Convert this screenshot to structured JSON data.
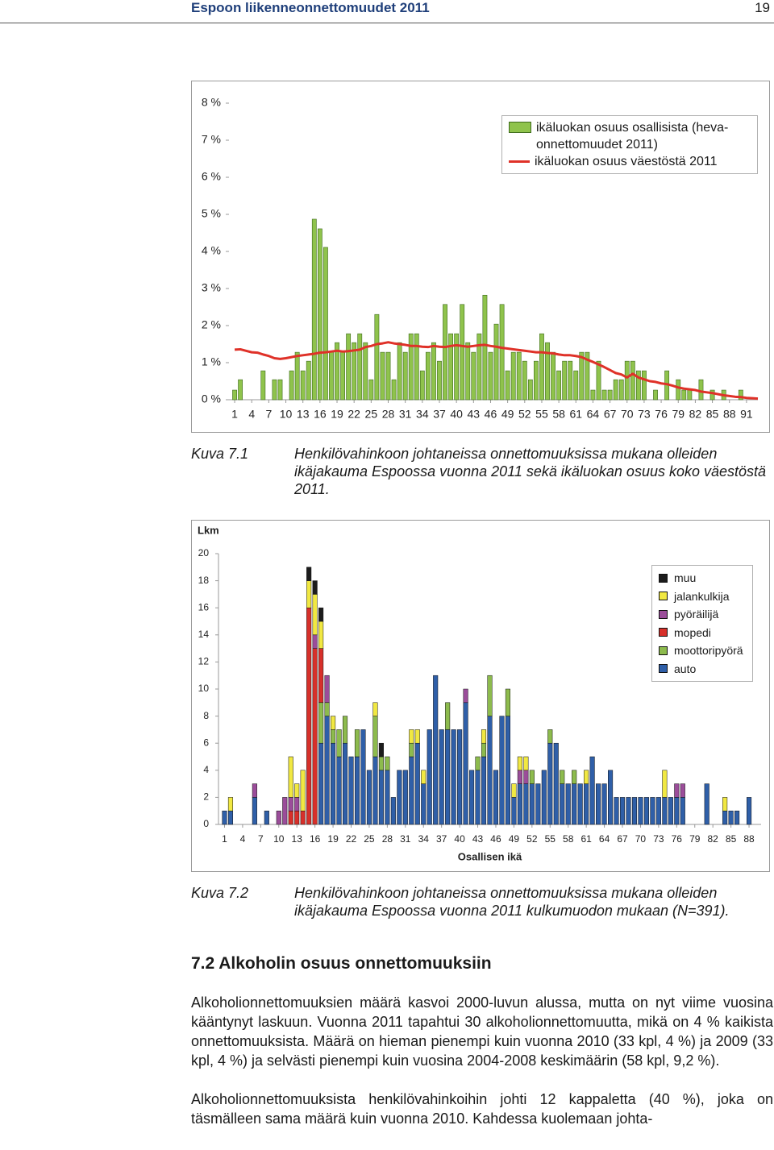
{
  "header": {
    "title": "Espoon liikenneonnettomuudet 2011",
    "page": 19
  },
  "chart_data": [
    {
      "type": "combo",
      "legend": "upper right",
      "grid": false,
      "x": [
        1,
        2,
        3,
        4,
        5,
        6,
        7,
        8,
        9,
        10,
        11,
        12,
        13,
        14,
        15,
        16,
        17,
        18,
        19,
        20,
        21,
        22,
        23,
        24,
        25,
        26,
        27,
        28,
        29,
        30,
        31,
        32,
        33,
        34,
        35,
        36,
        37,
        38,
        39,
        40,
        41,
        42,
        43,
        44,
        45,
        46,
        47,
        48,
        49,
        50,
        51,
        52,
        53,
        54,
        55,
        56,
        57,
        58,
        59,
        60,
        61,
        62,
        63,
        64,
        65,
        66,
        67,
        68,
        69,
        70,
        71,
        72,
        73,
        74,
        75,
        76,
        77,
        78,
        79,
        80,
        81,
        82,
        83,
        84,
        85,
        86,
        87,
        88,
        89,
        90,
        91,
        92,
        93
      ],
      "xlim": [
        0,
        93
      ],
      "xticks": [
        1,
        4,
        7,
        10,
        13,
        16,
        19,
        22,
        25,
        28,
        31,
        34,
        37,
        40,
        43,
        46,
        49,
        52,
        55,
        58,
        61,
        64,
        67,
        70,
        73,
        76,
        79,
        82,
        85,
        88,
        91
      ],
      "ylim": [
        0,
        8
      ],
      "yticks": [
        {
          "value": 0,
          "label": "0 %"
        },
        {
          "value": 1,
          "label": "1 %"
        },
        {
          "value": 2,
          "label": "2 %"
        },
        {
          "value": 3,
          "label": "3 %"
        },
        {
          "value": 4,
          "label": "4 %"
        },
        {
          "value": 5,
          "label": "5 %"
        },
        {
          "value": 6,
          "label": "6 %"
        },
        {
          "value": 7,
          "label": "7 %"
        },
        {
          "value": 8,
          "label": "8 %"
        }
      ],
      "series": [
        {
          "name": "ikäluokan osuus osallisista (heva-onnettomuudet 2011)",
          "type": "bar",
          "color": "#8fc34c",
          "values": [
            0.26,
            0.54,
            0,
            0,
            0,
            0.78,
            0,
            0.54,
            0.54,
            0,
            0.78,
            1.28,
            0.78,
            1.04,
            4.87,
            4.61,
            4.11,
            1.28,
            1.54,
            1.28,
            1.78,
            1.54,
            1.78,
            1.54,
            0.54,
            2.3,
            1.28,
            1.28,
            0.54,
            1.54,
            1.28,
            1.78,
            1.78,
            0.78,
            1.28,
            1.54,
            1.04,
            2.57,
            1.78,
            1.78,
            2.57,
            1.54,
            1.28,
            1.78,
            2.82,
            1.28,
            2.04,
            2.57,
            0.78,
            1.28,
            1.28,
            1.04,
            0.54,
            1.04,
            1.78,
            1.54,
            1.28,
            0.78,
            1.04,
            1.04,
            0.78,
            1.28,
            1.28,
            0.26,
            1.04,
            0.26,
            0.26,
            0.54,
            0.54,
            1.04,
            1.04,
            0.78,
            0.78,
            0,
            0.26,
            0,
            0.78,
            0,
            0.54,
            0.26,
            0.26,
            0,
            0.54,
            0,
            0.26,
            0,
            0.26,
            0,
            0,
            0.26,
            0,
            0,
            0
          ]
        },
        {
          "name": "ikäluokan osuus väestöstä 2011",
          "type": "line",
          "color": "#df3128",
          "values": [
            1.35,
            1.36,
            1.32,
            1.28,
            1.27,
            1.22,
            1.18,
            1.12,
            1.1,
            1.12,
            1.15,
            1.18,
            1.2,
            1.22,
            1.24,
            1.27,
            1.28,
            1.3,
            1.32,
            1.3,
            1.31,
            1.33,
            1.35,
            1.42,
            1.45,
            1.5,
            1.52,
            1.55,
            1.52,
            1.5,
            1.48,
            1.45,
            1.45,
            1.43,
            1.42,
            1.45,
            1.43,
            1.42,
            1.45,
            1.47,
            1.45,
            1.43,
            1.45,
            1.47,
            1.48,
            1.45,
            1.43,
            1.4,
            1.38,
            1.36,
            1.34,
            1.32,
            1.3,
            1.28,
            1.28,
            1.26,
            1.25,
            1.22,
            1.2,
            1.2,
            1.18,
            1.15,
            1.08,
            1.02,
            0.95,
            0.88,
            0.8,
            0.72,
            0.68,
            0.6,
            0.7,
            0.6,
            0.55,
            0.5,
            0.48,
            0.44,
            0.42,
            0.38,
            0.33,
            0.3,
            0.28,
            0.26,
            0.22,
            0.2,
            0.18,
            0.15,
            0.12,
            0.1,
            0.08,
            0.07,
            0.05,
            0.04,
            0.03
          ]
        }
      ]
    },
    {
      "type": "stacked_bar",
      "legend": "upper right",
      "grid": false,
      "y_label": "Lkm",
      "x_label": "Osallisen ikä",
      "x": [
        1,
        2,
        3,
        4,
        5,
        6,
        7,
        8,
        9,
        10,
        11,
        12,
        13,
        14,
        15,
        16,
        17,
        18,
        19,
        20,
        21,
        22,
        23,
        24,
        25,
        26,
        27,
        28,
        29,
        30,
        31,
        32,
        33,
        34,
        35,
        36,
        37,
        38,
        39,
        40,
        41,
        42,
        43,
        44,
        45,
        46,
        47,
        48,
        49,
        50,
        51,
        52,
        53,
        54,
        55,
        56,
        57,
        58,
        59,
        60,
        61,
        62,
        63,
        64,
        65,
        66,
        67,
        68,
        69,
        70,
        71,
        72,
        73,
        74,
        75,
        76,
        77,
        78,
        79,
        80,
        81,
        82,
        83,
        84,
        85,
        86,
        87,
        88,
        89
      ],
      "xlim": [
        0,
        90
      ],
      "xticks": [
        1,
        4,
        7,
        10,
        13,
        16,
        19,
        22,
        25,
        28,
        31,
        34,
        37,
        40,
        43,
        46,
        49,
        52,
        55,
        58,
        61,
        64,
        67,
        70,
        73,
        76,
        79,
        82,
        85,
        88
      ],
      "ylim": [
        0,
        20
      ],
      "yticks": [
        0,
        2,
        4,
        6,
        8,
        10,
        12,
        14,
        16,
        18,
        20
      ],
      "series": [
        {
          "name": "auto",
          "color": "#2f5fa8",
          "values": [
            1,
            1,
            0,
            0,
            0,
            2,
            0,
            1,
            0,
            0,
            0,
            0,
            0,
            0,
            0,
            0,
            6,
            8,
            6,
            5,
            6,
            5,
            5,
            7,
            4,
            5,
            4,
            4,
            2,
            4,
            4,
            5,
            6,
            3,
            7,
            11,
            7,
            7,
            7,
            7,
            9,
            4,
            4,
            5,
            8,
            4,
            8,
            8,
            2,
            3,
            3,
            3,
            3,
            4,
            6,
            6,
            3,
            3,
            3,
            3,
            3,
            5,
            3,
            3,
            4,
            2,
            2,
            2,
            2,
            2,
            2,
            2,
            2,
            2,
            2,
            2,
            2,
            0,
            0,
            0,
            3,
            0,
            0,
            1,
            1,
            1,
            0,
            2,
            0
          ]
        },
        {
          "name": "moottoripyörä",
          "color": "#8dbb4d",
          "values": [
            0,
            0,
            0,
            0,
            0,
            0,
            0,
            0,
            0,
            0,
            0,
            0,
            0,
            0,
            0,
            0,
            3,
            1,
            1,
            2,
            2,
            0,
            2,
            0,
            0,
            3,
            1,
            1,
            0,
            0,
            0,
            1,
            0,
            0,
            0,
            0,
            0,
            2,
            0,
            0,
            0,
            0,
            1,
            1,
            3,
            0,
            0,
            2,
            0,
            0,
            0,
            1,
            0,
            0,
            1,
            0,
            1,
            0,
            1,
            0,
            0,
            0,
            0,
            0,
            0,
            0,
            0,
            0,
            0,
            0,
            0,
            0,
            0,
            0,
            0,
            0,
            0,
            0,
            0,
            0,
            0,
            0,
            0,
            0,
            0,
            0,
            0,
            0,
            0
          ]
        },
        {
          "name": "mopedi",
          "color": "#d7302a",
          "values": [
            0,
            0,
            0,
            0,
            0,
            0,
            0,
            0,
            0,
            0,
            0,
            1,
            1,
            1,
            16,
            13,
            4,
            0,
            0,
            0,
            0,
            0,
            0,
            0,
            0,
            0,
            0,
            0,
            0,
            0,
            0,
            0,
            0,
            0,
            0,
            0,
            0,
            0,
            0,
            0,
            0,
            0,
            0,
            0,
            0,
            0,
            0,
            0,
            0,
            0,
            0,
            0,
            0,
            0,
            0,
            0,
            0,
            0,
            0,
            0,
            0,
            0,
            0,
            0,
            0,
            0,
            0,
            0,
            0,
            0,
            0,
            0,
            0,
            0,
            0,
            0,
            0,
            0,
            0,
            0,
            0,
            0,
            0,
            0,
            0,
            0,
            0,
            0,
            0
          ]
        },
        {
          "name": "pyöräilijä",
          "color": "#9b4d9a",
          "values": [
            0,
            0,
            0,
            0,
            0,
            1,
            0,
            0,
            0,
            1,
            2,
            1,
            1,
            0,
            0,
            1,
            0,
            2,
            0,
            0,
            0,
            0,
            0,
            0,
            0,
            0,
            0,
            0,
            0,
            0,
            0,
            0,
            0,
            0,
            0,
            0,
            0,
            0,
            0,
            0,
            1,
            0,
            0,
            0,
            0,
            0,
            0,
            0,
            0,
            1,
            1,
            0,
            0,
            0,
            0,
            0,
            0,
            0,
            0,
            0,
            0,
            0,
            0,
            0,
            0,
            0,
            0,
            0,
            0,
            0,
            0,
            0,
            0,
            0,
            0,
            1,
            1,
            0,
            0,
            0,
            0,
            0,
            0,
            0,
            0,
            0,
            0,
            0,
            0
          ]
        },
        {
          "name": "jalankulkija",
          "color": "#f1e842",
          "values": [
            0,
            1,
            0,
            0,
            0,
            0,
            0,
            0,
            0,
            0,
            0,
            3,
            1,
            3,
            2,
            3,
            2,
            0,
            1,
            0,
            0,
            0,
            0,
            0,
            0,
            1,
            0,
            0,
            0,
            0,
            0,
            1,
            1,
            1,
            0,
            0,
            0,
            0,
            0,
            0,
            0,
            0,
            0,
            1,
            0,
            0,
            0,
            0,
            1,
            1,
            1,
            0,
            0,
            0,
            0,
            0,
            0,
            0,
            0,
            0,
            1,
            0,
            0,
            0,
            0,
            0,
            0,
            0,
            0,
            0,
            0,
            0,
            0,
            2,
            0,
            0,
            0,
            0,
            0,
            0,
            0,
            0,
            0,
            1,
            0,
            0,
            0,
            0,
            0
          ]
        },
        {
          "name": "muu",
          "color": "#1c1c1c",
          "values": [
            0,
            0,
            0,
            0,
            0,
            0,
            0,
            0,
            0,
            0,
            0,
            0,
            0,
            0,
            1,
            1,
            1,
            0,
            0,
            0,
            0,
            0,
            0,
            0,
            0,
            0,
            1,
            0,
            0,
            0,
            0,
            0,
            0,
            0,
            0,
            0,
            0,
            0,
            0,
            0,
            0,
            0,
            0,
            0,
            0,
            0,
            0,
            0,
            0,
            0,
            0,
            0,
            0,
            0,
            0,
            0,
            0,
            0,
            0,
            0,
            0,
            0,
            0,
            0,
            0,
            0,
            0,
            0,
            0,
            0,
            0,
            0,
            0,
            0,
            0,
            0,
            0,
            0,
            0,
            0,
            0,
            0,
            0,
            0,
            0,
            0,
            0,
            0,
            0
          ]
        }
      ]
    }
  ],
  "figures": [
    {
      "label": "Kuva 7.1",
      "caption": "Henkilövahinkoon johtaneissa onnettomuuksissa mukana olleiden ikäjakauma Espoossa vuonna 2011 sekä ikäluokan osuus koko väestöstä 2011."
    },
    {
      "label": "Kuva 7.2",
      "caption": "Henkilövahinkoon johtaneissa onnettomuuksissa mukana olleiden ikäjakauma Espoossa vuonna 2011 kulkumuodon mukaan (N=391)."
    }
  ],
  "section": {
    "title": "7.2 Alkoholin osuus onnettomuuksiin",
    "paragraphs": [
      "Alkoholionnettomuuksien määrä kasvoi 2000-luvun alussa, mutta on nyt viime vuosina kääntynyt laskuun. Vuonna 2011 tapahtui 30 alkoholionnettomuutta, mikä on 4 % kaikista onnettomuuksista. Määrä on hieman pienempi kuin vuonna 2010 (33 kpl, 4 %) ja 2009 (33 kpl, 4 %) ja selvästi pienempi kuin vuosina 2004-2008 keskimäärin (58 kpl, 9,2 %).",
      "Alkoholionnettomuuksista henkilövahinkoihin johti 12 kappaletta (40 %), joka on täsmälleen sama määrä kuin vuonna 2010. Kahdessa kuolemaan johta-"
    ]
  }
}
